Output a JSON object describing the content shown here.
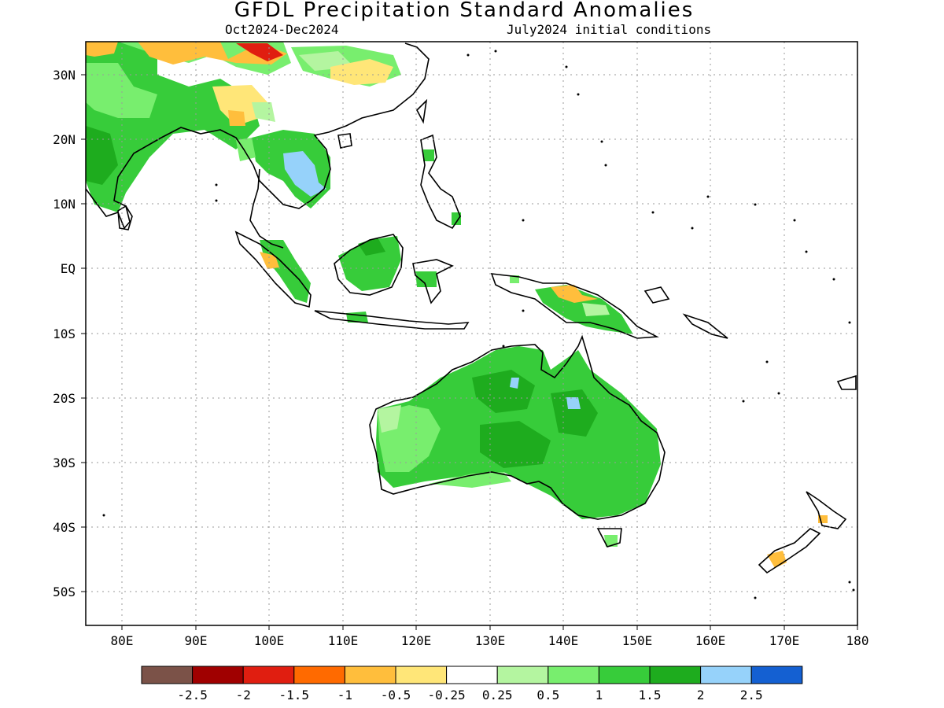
{
  "title": "GFDL Precipitation Standard Anomalies",
  "subtitle_left": "Oct2024-Dec2024",
  "subtitle_right": "July2024 initial conditions",
  "lon_labels": [
    "80E",
    "90E",
    "100E",
    "110E",
    "120E",
    "130E",
    "140E",
    "150E",
    "160E",
    "170E",
    "180"
  ],
  "lat_labels": [
    "30N",
    "20N",
    "10N",
    "EQ",
    "10S",
    "20S",
    "30S",
    "40S",
    "50S"
  ],
  "legend": {
    "colors": [
      "#7b5248",
      "#a00000",
      "#e01e10",
      "#ff6a00",
      "#ffbe3c",
      "#ffe678",
      "#ffffff",
      "#b4f5a0",
      "#78ee6e",
      "#37cc3a",
      "#1eac1e",
      "#96d2fa",
      "#1460d2"
    ],
    "labels": [
      "-2.5",
      "-2",
      "-1.5",
      "-1",
      "-0.5",
      "-0.25",
      "0.25",
      "0.5",
      "1",
      "1.5",
      "2",
      "2.5"
    ]
  }
}
